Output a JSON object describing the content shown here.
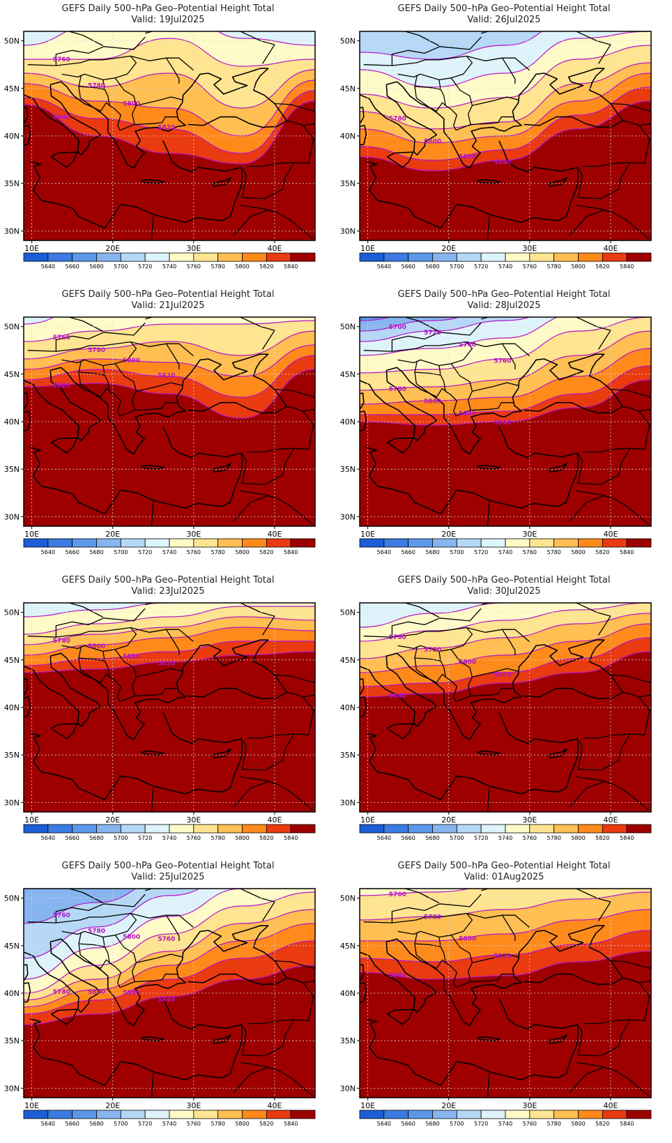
{
  "title_line": "GEFS Daily 500–hPa Geo–Potential Height Total",
  "lat_labels": [
    "50N",
    "45N",
    "40N",
    "35N",
    "30N"
  ],
  "lon_labels": [
    "10E",
    "20E",
    "30E",
    "40E"
  ],
  "colorbar_labels": [
    "5640",
    "5660",
    "5680",
    "5700",
    "5720",
    "5740",
    "5760",
    "5780",
    "5800",
    "5820",
    "5840"
  ],
  "colorbar_colors": [
    "#1b5fd6",
    "#3b7be3",
    "#5c97ea",
    "#86b5ef",
    "#b6d8f6",
    "#dff3fb",
    "#fffbc8",
    "#ffe491",
    "#ffbf52",
    "#ff8a1c",
    "#ea3a10",
    "#9e0000"
  ],
  "contour_color": "#b414c8",
  "panels": [
    {
      "valid": "Valid:  19Jul2025",
      "contour_labels": [
        "5780",
        "5800",
        "5820",
        "5840",
        "5760",
        "5780",
        "5800",
        "5820",
        "5840"
      ]
    },
    {
      "valid": "Valid:  26Jul2025",
      "contour_labels": [
        "5780",
        "5800",
        "5820",
        "5840"
      ]
    },
    {
      "valid": "Valid:  21Jul2025",
      "contour_labels": [
        "5760",
        "5780",
        "5800",
        "5820",
        "5820"
      ]
    },
    {
      "valid": "Valid:  28Jul2025",
      "contour_labels": [
        "5700",
        "5720",
        "5740",
        "5760",
        "5780",
        "5800",
        "5820",
        "5840"
      ]
    },
    {
      "valid": "Valid:  23Jul2025",
      "contour_labels": [
        "5780",
        "5800",
        "5820",
        "5820"
      ]
    },
    {
      "valid": "Valid:  30Jul2025",
      "contour_labels": [
        "5760",
        "5780",
        "5800",
        "5820",
        "5840"
      ]
    },
    {
      "valid": "Valid:  25Jul2025",
      "contour_labels": [
        "5760",
        "5780",
        "5800",
        "5760",
        "5780",
        "5800",
        "5820",
        "5840"
      ]
    },
    {
      "valid": "Valid:  01Aug2025",
      "contour_labels": [
        "5760",
        "5780",
        "5800",
        "5820",
        "5840"
      ]
    }
  ]
}
